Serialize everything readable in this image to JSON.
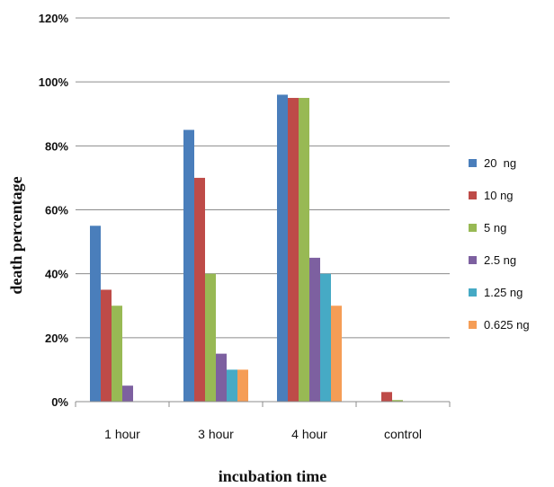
{
  "chart_data": {
    "type": "bar",
    "title": "",
    "xlabel": "incubation time",
    "ylabel": "death percentage",
    "ylim": [
      0,
      120
    ],
    "y_ticks": [
      "0%",
      "20%",
      "40%",
      "60%",
      "80%",
      "100%",
      "120%"
    ],
    "y_tick_values": [
      0,
      20,
      40,
      60,
      80,
      100,
      120
    ],
    "grid": true,
    "legend_position": "right",
    "categories": [
      "1 hour",
      "3 hour",
      "4 hour",
      "control"
    ],
    "series": [
      {
        "name": "20  ng",
        "color": "#4a7ebb",
        "values": [
          55,
          85,
          96,
          0
        ]
      },
      {
        "name": "10 ng",
        "color": "#be4b48",
        "values": [
          35,
          70,
          95,
          3
        ]
      },
      {
        "name": "5 ng",
        "color": "#98b954",
        "values": [
          30,
          40,
          95,
          0.5
        ]
      },
      {
        "name": "2.5 ng",
        "color": "#7d60a0",
        "values": [
          5,
          15,
          45,
          0
        ]
      },
      {
        "name": "1.25 ng",
        "color": "#46aac5",
        "values": [
          0,
          10,
          40,
          0
        ]
      },
      {
        "name": "0.625 ng",
        "color": "#f59d56",
        "values": [
          0,
          10,
          30,
          0
        ]
      }
    ]
  }
}
